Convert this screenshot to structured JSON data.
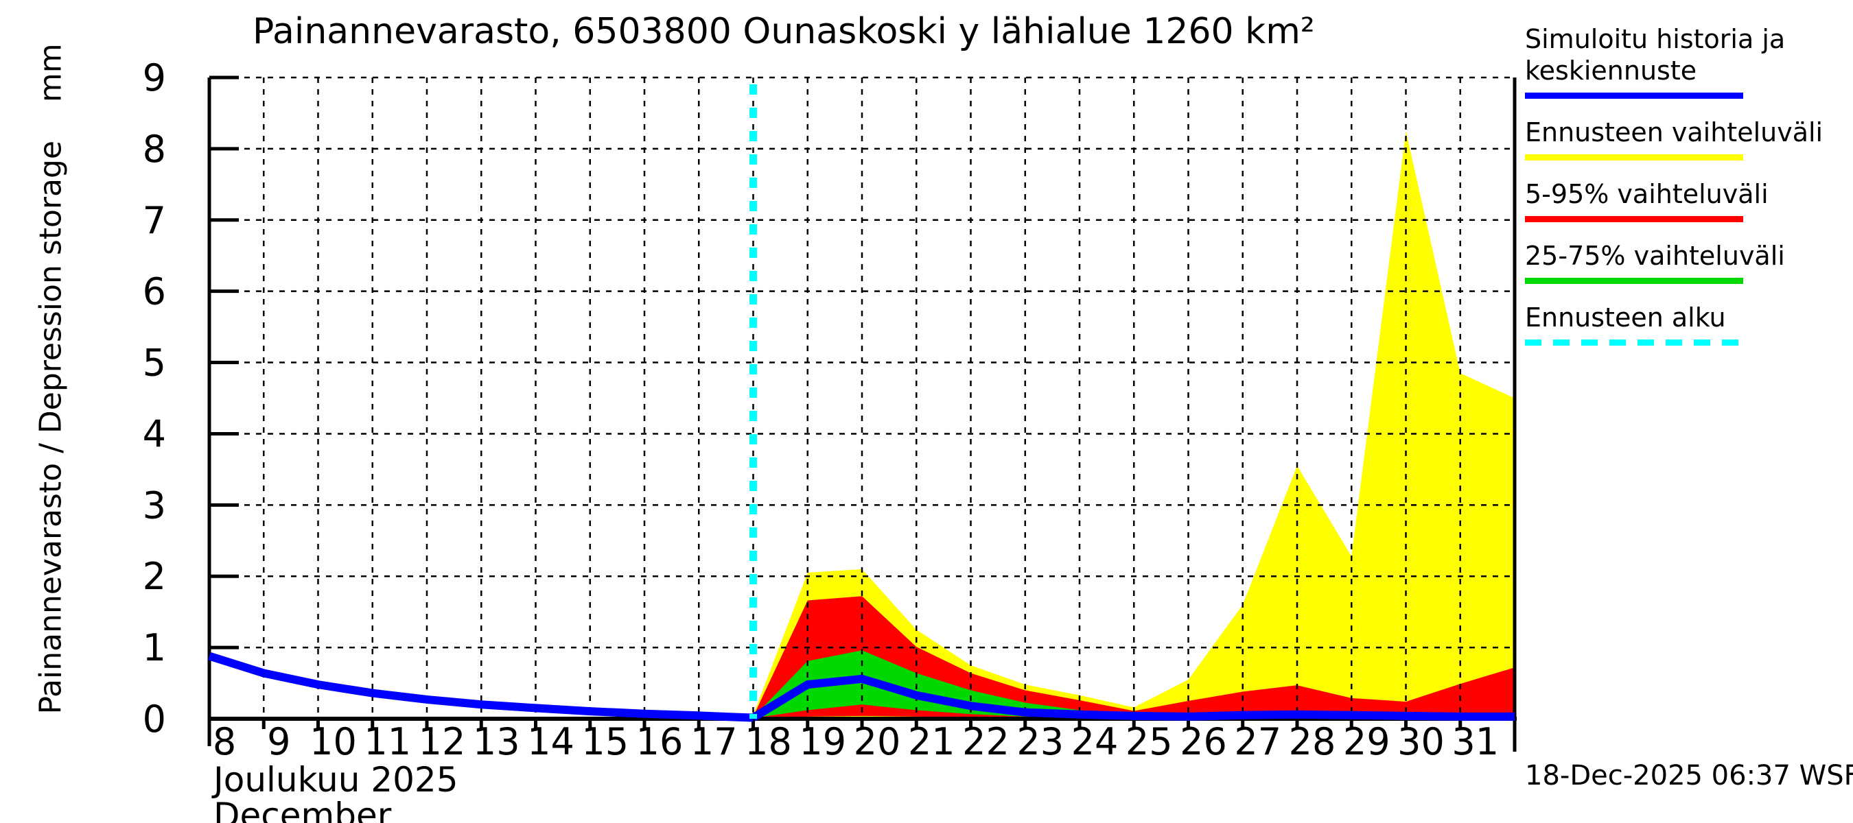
{
  "title": "Painannevarasto, 6503800 Ounaskoski y lähialue 1260 km²",
  "axes": {
    "ylabel": "Painannevarasto / Depression storage    mm",
    "xlabel_line1": "Joulukuu 2025",
    "xlabel_line2": "December"
  },
  "footer": {
    "timestamp": "18-Dec-2025 06:37 WSFS-O"
  },
  "legend": {
    "items": [
      {
        "label": "Simuloitu historia ja keskiennuste",
        "color": "#0000ff",
        "style": "solid"
      },
      {
        "label": "Ennusteen vaihteluväli",
        "color": "#ffff00",
        "style": "solid"
      },
      {
        "label": "5-95% vaihteluväli",
        "color": "#ff0000",
        "style": "solid"
      },
      {
        "label": "25-75% vaihteluväli",
        "color": "#00d800",
        "style": "solid"
      },
      {
        "label": "Ennusteen alku",
        "color": "#00ffff",
        "style": "dashed"
      }
    ]
  },
  "chart_data": {
    "type": "area",
    "title": "Painannevarasto, 6503800 Ounaskoski y lähialue 1260 km²",
    "ylabel": "Painannevarasto / Depression storage (mm)",
    "xlabel": "Joulukuu 2025 / December",
    "units": "mm",
    "ylim": [
      0,
      9
    ],
    "xlim": [
      8,
      32
    ],
    "grid": true,
    "y_ticks": [
      0,
      1,
      2,
      3,
      4,
      5,
      6,
      7,
      8,
      9
    ],
    "x_ticks": [
      8,
      9,
      10,
      11,
      12,
      13,
      14,
      15,
      16,
      17,
      18,
      19,
      20,
      21,
      22,
      23,
      24,
      25,
      26,
      27,
      28,
      29,
      30,
      31
    ],
    "forecast_start_day": 18,
    "colors": {
      "median": "#0000ff",
      "range_minmax": "#ffff00",
      "range_5_95": "#ff0000",
      "range_25_75": "#00d800",
      "forecast_start": "#00ffff",
      "grid": "#000000",
      "axis": "#000000"
    },
    "history": {
      "x": [
        8,
        9,
        10,
        11,
        12,
        13,
        14,
        15,
        16,
        17,
        17.6,
        18
      ],
      "y": [
        0.88,
        0.64,
        0.48,
        0.36,
        0.27,
        0.2,
        0.15,
        0.105,
        0.07,
        0.045,
        0.025,
        0.015
      ]
    },
    "forecast": {
      "x": [
        18,
        19,
        20,
        21,
        22,
        23,
        24,
        25,
        26,
        27,
        28,
        29,
        30,
        31,
        32
      ],
      "max": [
        0.05,
        2.05,
        2.1,
        1.25,
        0.75,
        0.48,
        0.33,
        0.16,
        0.55,
        1.6,
        3.55,
        2.28,
        8.25,
        4.85,
        4.5
      ],
      "p95": [
        0.03,
        1.66,
        1.72,
        1.01,
        0.64,
        0.4,
        0.26,
        0.11,
        0.25,
        0.38,
        0.47,
        0.29,
        0.24,
        0.49,
        0.72
      ],
      "p75": [
        0.02,
        0.81,
        0.96,
        0.64,
        0.4,
        0.225,
        0.12,
        0.06,
        0.05,
        0.06,
        0.07,
        0.06,
        0.05,
        0.05,
        0.05
      ],
      "median": [
        0.015,
        0.48,
        0.56,
        0.33,
        0.18,
        0.09,
        0.06,
        0.04,
        0.03,
        0.05,
        0.06,
        0.05,
        0.04,
        0.03,
        0.03
      ],
      "p25": [
        0.01,
        0.12,
        0.2,
        0.12,
        0.065,
        0.03,
        0.02,
        0.02,
        0.015,
        0.015,
        0.02,
        0.015,
        0.015,
        0.015,
        0.015
      ],
      "p5": [
        0.005,
        0.03,
        0.04,
        0.03,
        0.02,
        0.01,
        0.008,
        0.008,
        0.008,
        0.008,
        0.008,
        0.008,
        0.008,
        0.008,
        0.008
      ],
      "min": [
        0,
        0.005,
        0.005,
        0.005,
        0,
        0,
        0,
        0,
        0,
        0,
        0,
        0,
        0,
        0,
        0
      ]
    }
  }
}
